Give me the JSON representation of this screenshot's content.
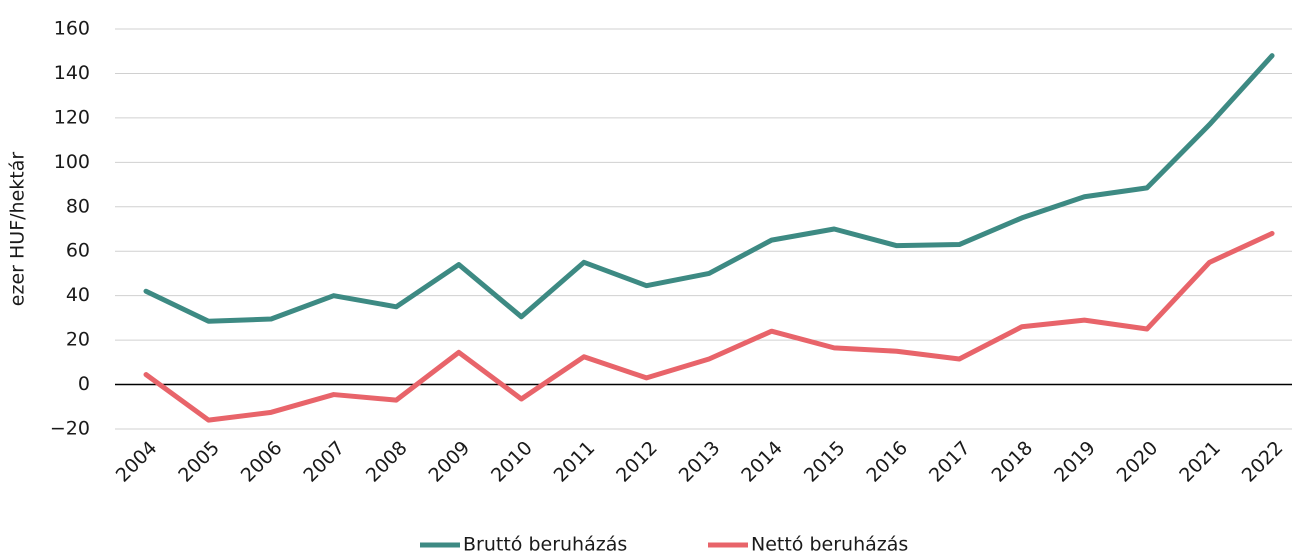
{
  "chart_data": {
    "type": "line",
    "ylabel": "ezer HUF/hektár",
    "categories": [
      "2004",
      "2005",
      "2006",
      "2007",
      "2008",
      "2009",
      "2010",
      "2011",
      "2012",
      "2013",
      "2014",
      "2015",
      "2016",
      "2017",
      "2018",
      "2019",
      "2020",
      "2021",
      "2022"
    ],
    "series": [
      {
        "name": "Bruttó beruházás",
        "color": "#3d8a83",
        "values": [
          42,
          28.5,
          29.5,
          40,
          35,
          54,
          30.5,
          55,
          44.5,
          50,
          65,
          70,
          62.5,
          63,
          75,
          84.5,
          88.5,
          117,
          148
        ]
      },
      {
        "name": "Nettó beruházás",
        "color": "#e8646a",
        "values": [
          4.5,
          -16,
          -12.5,
          -4.5,
          -7,
          14.5,
          -6.5,
          12.5,
          3,
          11.5,
          24,
          16.5,
          15,
          11.5,
          26,
          29,
          25,
          55,
          68
        ]
      }
    ],
    "ylim": [
      -20,
      160
    ],
    "yticks": [
      {
        "value": -20,
        "label": "−20"
      },
      0,
      20,
      40,
      60,
      80,
      100,
      120,
      140,
      160
    ],
    "grid": true,
    "legend": "bottom"
  }
}
